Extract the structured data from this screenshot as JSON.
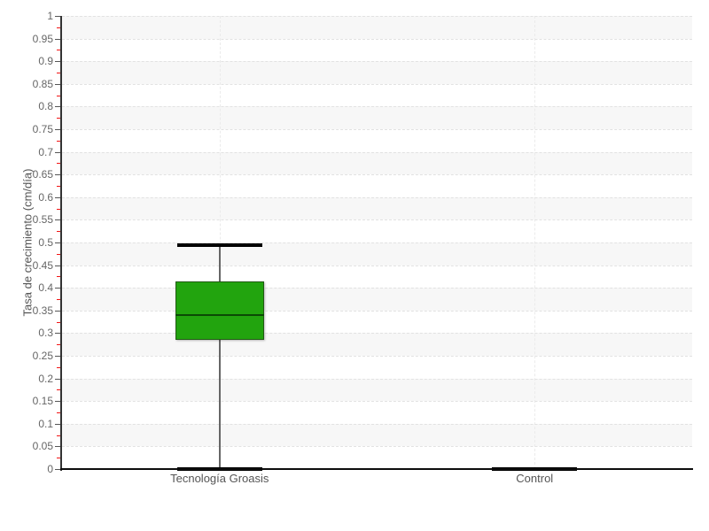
{
  "chart_data": {
    "type": "box",
    "title": "",
    "ylabel": "Tasa de crecimiento (cm/día)",
    "xlabel": "",
    "ylim": [
      0,
      1
    ],
    "ytick_step": 0.05,
    "yminor_tick_step": 0.025,
    "grid": "dashed horizontal lines every 0.05, dashed vertical line at each category center, alternating horizontal shaded bands",
    "legend": "none",
    "categories": [
      "Tecnología Groasis",
      "Control"
    ],
    "series": [
      {
        "name": "Tecnología Groasis",
        "low": 0,
        "q1": 0.285,
        "median": 0.34,
        "q3": 0.415,
        "high": 0.495
      },
      {
        "name": "Control",
        "low": 0,
        "q1": 0,
        "median": 0,
        "q3": 0,
        "high": 0
      }
    ],
    "ytick_labels": [
      "0",
      "0.05",
      "0.1",
      "0.15",
      "0.2",
      "0.25",
      "0.3",
      "0.35",
      "0.4",
      "0.45",
      "0.5",
      "0.55",
      "0.6",
      "0.65",
      "0.7",
      "0.75",
      "0.8",
      "0.85",
      "0.9",
      "0.95",
      "1"
    ]
  },
  "colors": {
    "box_fill": "#22a40e",
    "box_border": "#215a14",
    "median": "#0b4a05",
    "whisker": "#666666",
    "cap": "#000000",
    "y_axis": "#333333",
    "x_axis": "#0d0d0d",
    "major_tick": "#555555",
    "minor_tick": "#f01414",
    "grid_line": "#e2e2e2",
    "band": "#f7f7f7",
    "tick_label": "#666666",
    "axis_title": "#555555",
    "background": "#ffffff"
  }
}
